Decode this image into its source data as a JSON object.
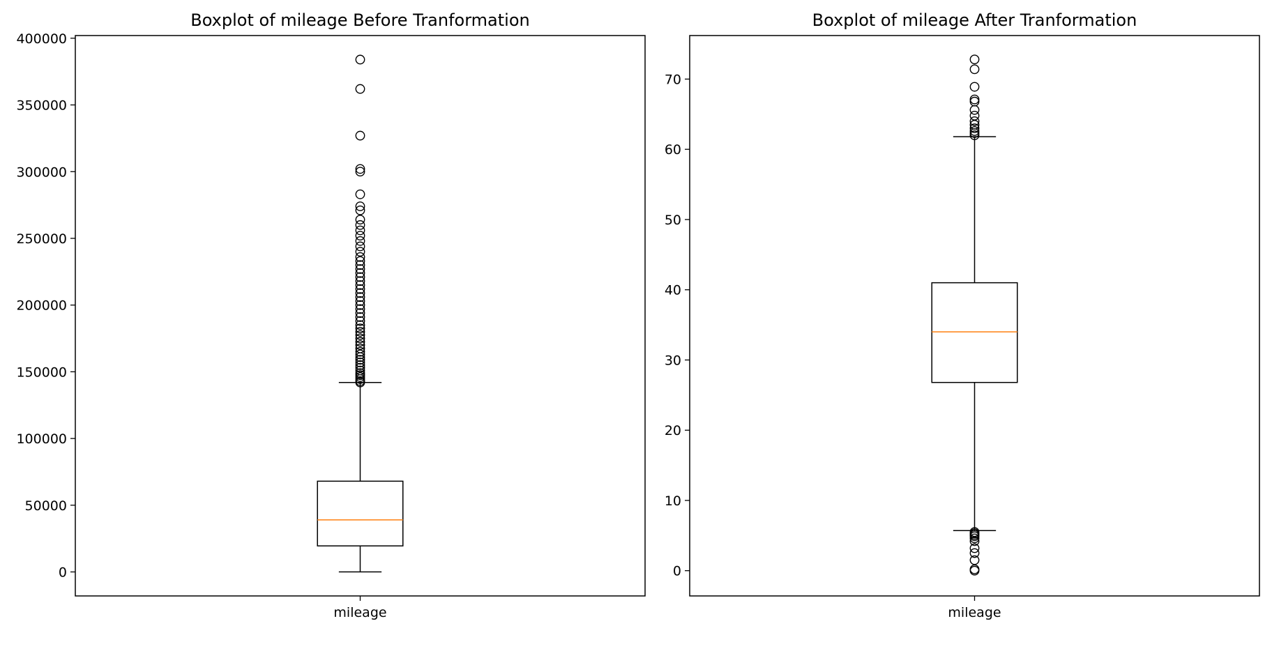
{
  "chart_data": [
    {
      "type": "boxplot",
      "title": "Boxplot of mileage Before Tranformation",
      "xlabel": "",
      "ylabel": "",
      "categories": [
        "mileage"
      ],
      "ylim": [
        -18000,
        402000
      ],
      "yticks": [
        0,
        50000,
        100000,
        150000,
        200000,
        250000,
        300000,
        350000,
        400000
      ],
      "grid": false,
      "box": {
        "whisker_low": 0,
        "q1": 19500,
        "median": 39000,
        "q3": 68000,
        "whisker_high": 142000,
        "median_color": "#ff7f0e",
        "outliers": [
          142000,
          143000,
          144500,
          146000,
          147500,
          149000,
          151000,
          153000,
          155000,
          157000,
          159000,
          161000,
          163000,
          165000,
          167500,
          170000,
          172500,
          175000,
          177500,
          180000,
          182500,
          185000,
          188000,
          191000,
          194000,
          197000,
          200000,
          203000,
          206000,
          209000,
          212000,
          215000,
          218000,
          221000,
          224000,
          227000,
          230000,
          233000,
          236000,
          240000,
          244000,
          248000,
          252000,
          256000,
          260000,
          264000,
          271000,
          274000,
          283000,
          300000,
          302000,
          327000,
          362000,
          384000
        ]
      }
    },
    {
      "type": "boxplot",
      "title": "Boxplot of mileage After Tranformation",
      "xlabel": "",
      "ylabel": "",
      "categories": [
        "mileage"
      ],
      "ylim": [
        -3.6,
        76.2
      ],
      "yticks": [
        0,
        10,
        20,
        30,
        40,
        50,
        60,
        70
      ],
      "grid": false,
      "box": {
        "whisker_low": 5.7,
        "q1": 26.8,
        "median": 34,
        "q3": 41,
        "whisker_high": 61.8,
        "median_color": "#ff7f0e",
        "outliers": [
          0,
          0.2,
          1.5,
          2.5,
          3.2,
          4.2,
          4.6,
          4.9,
          5.1,
          5.3,
          5.5,
          62.0,
          62.3,
          62.6,
          63.0,
          63.5,
          64.0,
          64.8,
          65.6,
          66.8,
          67.1,
          68.9,
          71.4,
          72.8
        ]
      }
    }
  ]
}
